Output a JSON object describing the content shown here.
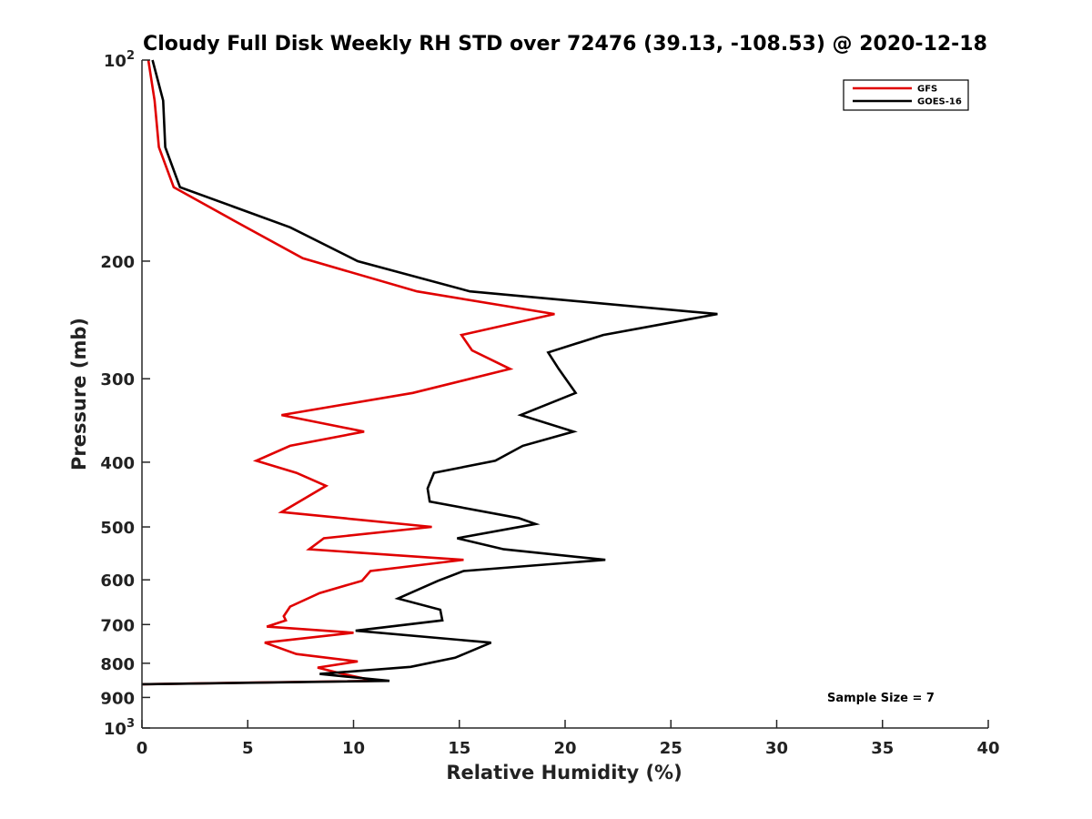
{
  "chart_data": {
    "type": "line",
    "title": "Cloudy Full Disk Weekly RH STD over 72476 (39.13, -108.53) @ 2020-12-18",
    "xlabel": "Relative Humidity (%)",
    "ylabel": "Pressure (mb)",
    "xlim": [
      0,
      40
    ],
    "ylim": [
      100,
      1000
    ],
    "y_scale": "log",
    "y_reversed": true,
    "x_ticks": [
      0,
      5,
      10,
      15,
      20,
      25,
      30,
      35,
      40
    ],
    "x_tick_labels": [
      "0",
      "5",
      "10",
      "15",
      "20",
      "25",
      "30",
      "35",
      "40"
    ],
    "y_ticks": [
      100,
      200,
      300,
      400,
      500,
      600,
      700,
      800,
      900,
      1000
    ],
    "y_tick_labels": [
      {
        "base": "10",
        "exp": "2"
      },
      {
        "base": "200"
      },
      {
        "base": "300"
      },
      {
        "base": "400"
      },
      {
        "base": "500"
      },
      {
        "base": "600"
      },
      {
        "base": "700"
      },
      {
        "base": "800"
      },
      {
        "base": "900"
      },
      {
        "base": "10",
        "exp": "3"
      }
    ],
    "legend_position": "top-right",
    "annotation": "Sample Size = 7",
    "series": [
      {
        "name": "GFS",
        "color": "#e00000",
        "points": [
          [
            0.3,
            100
          ],
          [
            0.6,
            115
          ],
          [
            0.8,
            135
          ],
          [
            1.5,
            155
          ],
          [
            4.5,
            175
          ],
          [
            7.6,
            198
          ],
          [
            13.0,
            222
          ],
          [
            19.5,
            240
          ],
          [
            15.1,
            258
          ],
          [
            15.6,
            272
          ],
          [
            17.4,
            290
          ],
          [
            12.8,
            315
          ],
          [
            6.6,
            340
          ],
          [
            10.5,
            360
          ],
          [
            7.0,
            378
          ],
          [
            5.4,
            398
          ],
          [
            7.3,
            415
          ],
          [
            8.7,
            434
          ],
          [
            6.6,
            475
          ],
          [
            13.7,
            500
          ],
          [
            8.6,
            520
          ],
          [
            7.9,
            540
          ],
          [
            15.2,
            560
          ],
          [
            10.8,
            582
          ],
          [
            10.4,
            602
          ],
          [
            8.4,
            628
          ],
          [
            7.0,
            658
          ],
          [
            6.7,
            680
          ],
          [
            6.8,
            690
          ],
          [
            5.9,
            705
          ],
          [
            10.0,
            720
          ],
          [
            5.8,
            745
          ],
          [
            7.3,
            775
          ],
          [
            10.2,
            795
          ],
          [
            8.3,
            812
          ],
          [
            9.5,
            830
          ],
          [
            11.0,
            850
          ],
          [
            0.0,
            860
          ]
        ]
      },
      {
        "name": "GOES-16",
        "color": "#000000",
        "points": [
          [
            0.5,
            100
          ],
          [
            1.0,
            115
          ],
          [
            1.1,
            135
          ],
          [
            1.8,
            155
          ],
          [
            7.0,
            178
          ],
          [
            10.2,
            200
          ],
          [
            15.5,
            222
          ],
          [
            27.2,
            240
          ],
          [
            21.8,
            258
          ],
          [
            19.2,
            274
          ],
          [
            19.7,
            290
          ],
          [
            20.5,
            315
          ],
          [
            17.9,
            340
          ],
          [
            20.4,
            360
          ],
          [
            18.0,
            378
          ],
          [
            16.7,
            398
          ],
          [
            13.8,
            415
          ],
          [
            13.5,
            438
          ],
          [
            13.6,
            458
          ],
          [
            17.8,
            485
          ],
          [
            18.6,
            495
          ],
          [
            14.9,
            520
          ],
          [
            17.1,
            540
          ],
          [
            21.9,
            560
          ],
          [
            15.2,
            582
          ],
          [
            14.0,
            602
          ],
          [
            12.1,
            640
          ],
          [
            14.1,
            665
          ],
          [
            14.2,
            690
          ],
          [
            10.1,
            715
          ],
          [
            16.5,
            745
          ],
          [
            14.8,
            785
          ],
          [
            12.7,
            810
          ],
          [
            8.4,
            830
          ],
          [
            11.7,
            850
          ],
          [
            0.0,
            860
          ]
        ]
      }
    ]
  }
}
